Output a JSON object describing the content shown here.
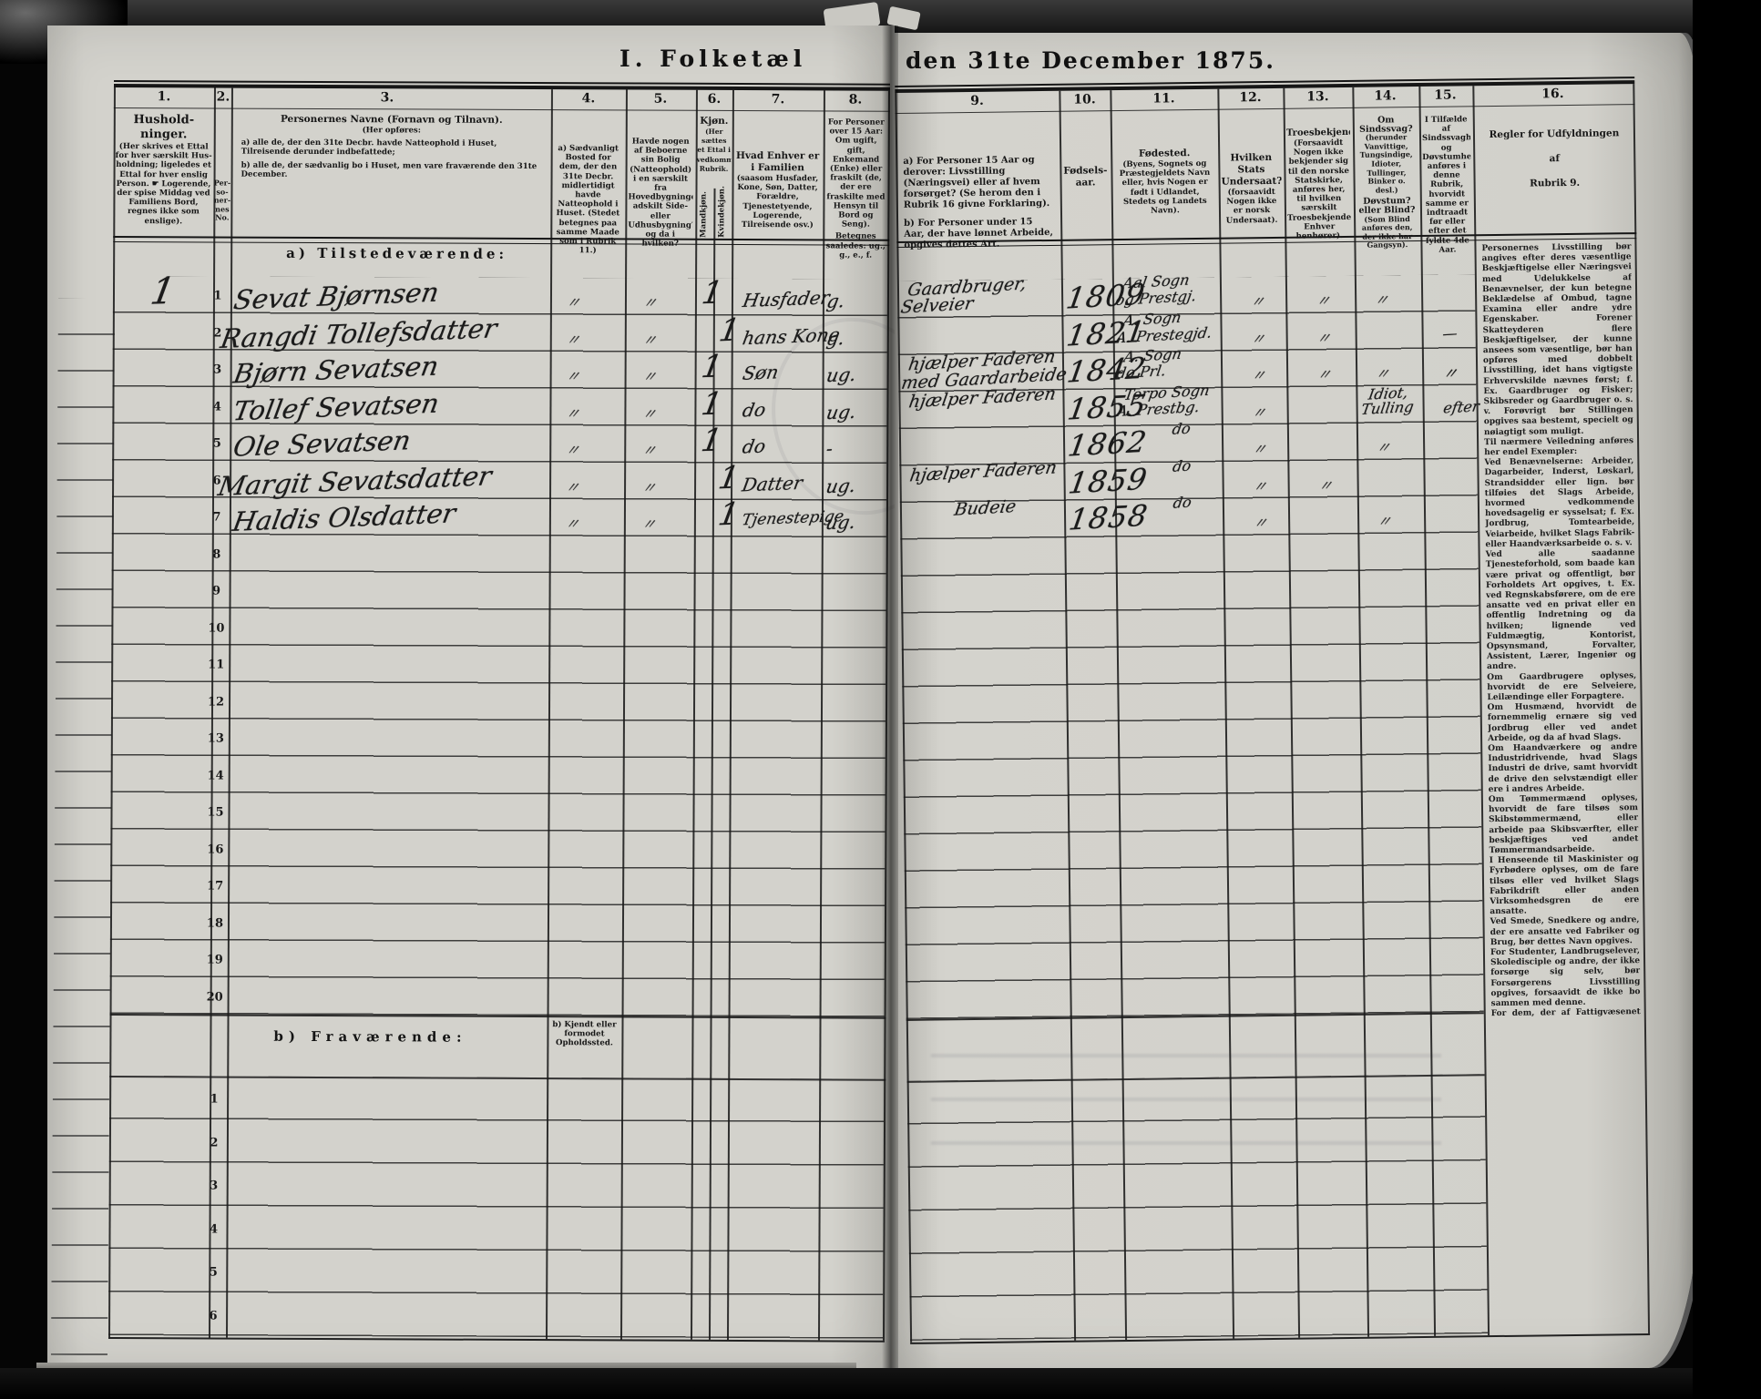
{
  "title": {
    "left": "I. Folketæl",
    "right": "den 31te December 1875."
  },
  "sections": {
    "present": "a) Tilstedeværende:",
    "absent": "b) Fraværende:",
    "absent_col4_note": "b) Kjendt eller formodet Opholdssted."
  },
  "columns": {
    "c1": {
      "num": "1.",
      "title": "Hushold-ninger.",
      "note": "(Her skrives et Ettal for hver særskilt Hus­holdning; ligeledes et Ettal for hver enslig Person. ☛ Logerende, der spise Middag ved Familiens Bord, regnes ikke som enslige)."
    },
    "c2": {
      "num": "2.",
      "title": "Per-\nso-\nner-\nnes\nNo."
    },
    "c3": {
      "num": "3.",
      "title": "Personernes Navne (Fornavn og Tilnavn).",
      "sub": "(Her opføres:",
      "a": "a) alle de, der den 31te Decbr. havde Natteophold i Huset, Tilreisende derunder indbefattede;",
      "b": "b) alle de, der sædvanlig bo i Huset, men vare fraværende den 31te December."
    },
    "c4": {
      "num": "4.",
      "body": "a) Sædvanligt Bosted for dem, der den 31te Decbr. midlertidigt havde Natteophold i Huset. (Stedet betegnes paa samme Maade som i Rubrik 11.)"
    },
    "c5": {
      "num": "5.",
      "body": "Havde nogen af Beboerne sin Bolig (Natteophold) i en særskilt fra Hovedbygningen adskilt Side- eller Udhusbygning? og da i hvilken?"
    },
    "c6": {
      "num": "6.",
      "title": "Kjøn.",
      "note": "(Her sættes et Ettal i vedkommende Rubrik.",
      "male": "Mandkjøn.",
      "female": "Kvindekjøn."
    },
    "c7": {
      "num": "7.",
      "title": "Hvad Enhver er i Familien",
      "body": "(saasom Husfader, Kone, Søn, Datter, Forældre, Tjenestetyende, Logerende, Tilreisende osv.)"
    },
    "c8": {
      "num": "8.",
      "body": "For Personer over 15 Aar: Om ugift, gift, Enkemand (Enke) eller fraskilt (de, der ere fraskilte med Hensyn til Bord og Seng).",
      "tail": "Betegnes saaledes: ug., g., e., f."
    },
    "c9": {
      "num": "9.",
      "a": "a) For Personer 15 Aar og derover: Livsstilling (Næringsvei) eller af hvem forsørget? (Se herom den i Rubrik 16 givne Forklaring).",
      "b": "b) For Personer under 15 Aar, der have lønnet Arbeide, opgives dettes Art."
    },
    "c10": {
      "num": "10.",
      "title": "Fødsels-aar."
    },
    "c11": {
      "num": "11.",
      "title": "Fødested.",
      "body": "(Byens, Sognets og Præstegjeldets Navn eller, hvis Nogen er født i Udlandet, Stedets og Landets Navn)."
    },
    "c12": {
      "num": "12.",
      "title": "Hvilken Stats Undersaat?",
      "body": "(forsaavidt Nogen ikke er norsk Undersaat)."
    },
    "c13": {
      "num": "13.",
      "title": "Troesbekjendelse.",
      "body": "(Forsaavidt Nogen ikke bekjender sig til den norske Statskirke, anføres her, til hvilken særskilt Troesbekjendelse Enhver henhører)."
    },
    "c14": {
      "num": "14.",
      "title": "Om Sindssvag?",
      "body": "(herunder Vanvittige, Tungsindige, Idioter, Tullinger, Binker o. desl.)",
      "title2": "Døvstum? eller Blind?",
      "body2": "(Som Blind anføres den, der ikke har Gangsyn)."
    },
    "c15": {
      "num": "15.",
      "body": "I Tilfælde af Sindssvaghed og Døvstumhed anføres i denne Rubrik, hvorvidt samme er indtraadt før eller efter det fyldte 4de Aar."
    },
    "c16": {
      "num": "16.",
      "line1": "Regler for Udfyldningen",
      "line2": "af",
      "line3": "Rubrik 9."
    }
  },
  "row_numbers_a": [
    "1",
    "2",
    "3",
    "4",
    "5",
    "6",
    "7",
    "8",
    "9",
    "10",
    "11",
    "12",
    "13",
    "14",
    "15",
    "16",
    "17",
    "18",
    "19",
    "20"
  ],
  "row_numbers_b": [
    "1",
    "2",
    "3",
    "4",
    "5",
    "6"
  ],
  "rows": [
    {
      "no": "1",
      "household": "1",
      "name": "Sevat Bjørnsen",
      "residence": "〃",
      "outbuilding": "〃",
      "male": "1",
      "family": "Husfader",
      "marital": "g.",
      "occupation": "Gaardbruger,",
      "occupation2": "Selveier",
      "year": "1809",
      "birthplace": "Aal Sogn",
      "birthplace2": "og Prestgj.",
      "c12": "〃",
      "c13": "〃",
      "c14": "〃"
    },
    {
      "no": "2",
      "name": "Rangdi Tollefsdatter",
      "residence": "〃",
      "outbuilding": "〃",
      "female": "1",
      "family": "hans Kone",
      "marital": "g.",
      "year": "1821",
      "birthplace": "A. Sogn",
      "birthplace2": "A. Prestegjd.",
      "c12": "〃",
      "c13": "〃",
      "c15": "—"
    },
    {
      "no": "3",
      "name": "Bjørn Sevatsen",
      "residence": "〃",
      "outbuilding": "〃",
      "male": "1",
      "family": "Søn",
      "marital": "ug.",
      "occupation": "hjælper Faderen",
      "occupation2": "med Gaardarbeide",
      "year": "1842",
      "birthplace": "A. Sogn",
      "birthplace2": "do Prl.",
      "c12": "〃",
      "c13": "〃",
      "c14": "〃",
      "c15": "〃"
    },
    {
      "no": "4",
      "name": "Tollef Sevatsen",
      "residence": "〃",
      "outbuilding": "〃",
      "male": "1",
      "family": "do",
      "marital": "ug.",
      "occupation": "hjælper Faderen",
      "year": "1855",
      "birthplace": "Torpo Sogn",
      "birthplace2": "A. Prestbg.",
      "c12": "〃",
      "c14a": "Idiot,",
      "c14b": "Tulling",
      "c15": "efter"
    },
    {
      "no": "5",
      "name": "Ole Sevatsen",
      "residence": "〃",
      "outbuilding": "〃",
      "male": "1",
      "family": "do",
      "marital": "-",
      "year": "1862",
      "birthplace": "do",
      "c12": "〃",
      "c14": "〃"
    },
    {
      "no": "6",
      "name": "Margit Sevatsdatter",
      "residence": "〃",
      "outbuilding": "〃",
      "female": "1",
      "family": "Datter",
      "marital": "ug.",
      "occupation": "hjælper Faderen",
      "year": "1859",
      "birthplace": "do",
      "c12": "〃",
      "c13": "〃"
    },
    {
      "no": "7",
      "name": "Haldis Olsdatter",
      "residence": "〃",
      "outbuilding": "〃",
      "female": "1",
      "family": "Tjenestepige",
      "marital": "ug.",
      "occupation": "Budeie",
      "year": "1858",
      "birthplace": "do",
      "c12": "〃",
      "c14": "〃"
    }
  ],
  "instructions": "Personernes Livsstilling bør angives efter deres væsentlige Beskjæftigelse eller Næringsvei med Udelukkelse af Benævnelser, der kun betegne Beklædelse af Ombud, tagne Examina eller andre ydre Egenskaber. Forener Skatteyderen flere Beskjæftigelser, der kunne ansees som væsentlige, bør han opføres med dobbelt Livsstilling, idet hans vigtigste Erhvervskilde nævnes først; f. Ex. Gaardbruger og Fisker; Skibsreder og Gaardbruger o. s. v. Forøvrigt bør Stillingen opgives saa bestemt, specielt og nøiagtigt som muligt.\nTil nærmere Veiledning anføres her endel Exempler:\nVed Benævnelserne: Arbeider, Dagarbeider, Inderst, Løskarl, Strandsidder eller lign. bør tilføies det Slags Arbeide, hvormed vedkommende hovedsagelig er sysselsat; f. Ex. Jordbrug, Tomtearbeide, Veiarbeide, hvilket Slags Fabrik- eller Haandværksarbeide o. s. v.\nVed alle saadanne Tjenesteforhold, som baade kan være privat og offentligt, bør Forholdets Art opgives, t. Ex. ved Regnskabsførere, om de ere ansatte ved en privat eller en offentlig Indretning og da hvilken; lignende ved Fuldmægtig, Kontorist, Opsynsmand, Forvalter, Assistent, Lærer, Ingeniør og andre.\nOm Gaardbrugere oplyses, hvorvidt de ere Selveiere, Leilændinge eller Forpagtere.\nOm Husmænd, hvorvidt de fornemmelig ernære sig ved Jordbrug eller ved andet Arbeide, og da af hvad Slags.\nOm Haandværkere og andre Industridrivende, hvad Slags Industri de drive, samt hvorvidt de drive den selvstændigt eller ere i andres Arbeide.\nOm Tømmermænd oplyses, hvorvidt de fare tilsøs som Skibstømmermænd, eller arbeide paa Skibsværfter, eller beskjæftiges ved andet Tømmermandsarbeide.\nI Henseende til Maskinister og Fyrbødere oplyses, om de fare tilsøs eller ved hvilket Slags Fabrikdrift eller anden Virksomhedsgren de ere ansatte.\nVed Smede, Snedkere og andre, der ere ansatte ved Fabriker og Brug, bør dettes Navn opgives.\nFor Studenter, Landbrugselever, Skoledisciple og andre, der ikke forsørge sig selv, bør Forsørgerens Livsstilling opgives, forsaavidt de ikke bo sammen med denne.\nFor dem, der af Fattigvæsenet understøttes, oplyses, hvorvidt de ere helt eller delvis understøttede og i sidste Tilfælde, hvad de forøvrigt ernære sig ved."
}
